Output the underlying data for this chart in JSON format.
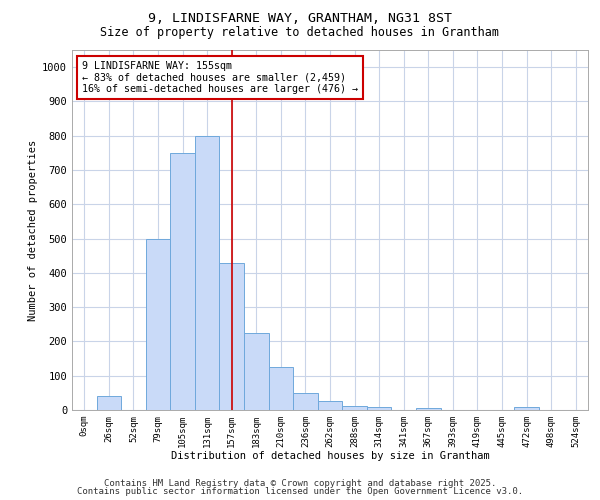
{
  "title1": "9, LINDISFARNE WAY, GRANTHAM, NG31 8ST",
  "title2": "Size of property relative to detached houses in Grantham",
  "xlabel": "Distribution of detached houses by size in Grantham",
  "ylabel": "Number of detached properties",
  "bin_labels": [
    "0sqm",
    "26sqm",
    "52sqm",
    "79sqm",
    "105sqm",
    "131sqm",
    "157sqm",
    "183sqm",
    "210sqm",
    "236sqm",
    "262sqm",
    "288sqm",
    "314sqm",
    "341sqm",
    "367sqm",
    "393sqm",
    "419sqm",
    "445sqm",
    "472sqm",
    "498sqm",
    "524sqm"
  ],
  "bar_heights": [
    0,
    40,
    0,
    500,
    750,
    800,
    430,
    225,
    125,
    50,
    25,
    12,
    8,
    0,
    5,
    0,
    0,
    0,
    8,
    0,
    0
  ],
  "bar_color": "#c9daf8",
  "bar_edge_color": "#6fa8dc",
  "red_line_index": 6,
  "red_line_color": "#cc0000",
  "annotation_line1": "9 LINDISFARNE WAY: 155sqm",
  "annotation_line2": "← 83% of detached houses are smaller (2,459)",
  "annotation_line3": "16% of semi-detached houses are larger (476) →",
  "annotation_box_color": "#ffffff",
  "annotation_box_edge": "#cc0000",
  "ylim": [
    0,
    1050
  ],
  "yticks": [
    0,
    100,
    200,
    300,
    400,
    500,
    600,
    700,
    800,
    900,
    1000
  ],
  "footer1": "Contains HM Land Registry data © Crown copyright and database right 2025.",
  "footer2": "Contains public sector information licensed under the Open Government Licence v3.0.",
  "bg_color": "#ffffff",
  "grid_color": "#c9d4e8"
}
